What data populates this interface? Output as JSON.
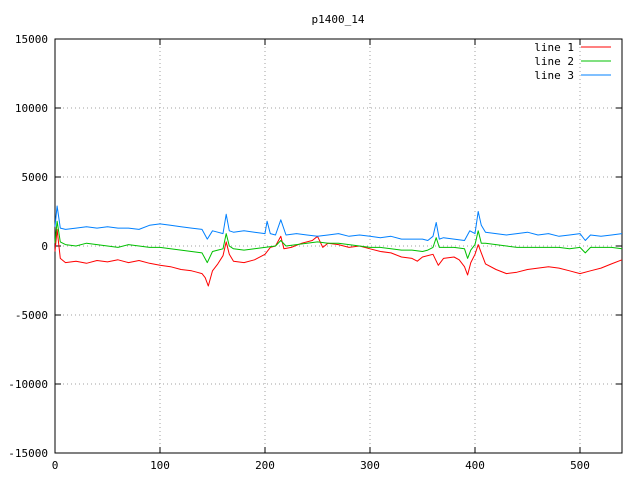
{
  "chart_data": {
    "type": "line",
    "title": "p1400_14",
    "xlabel": "",
    "ylabel": "",
    "xlim": [
      0,
      540
    ],
    "ylim": [
      -15000,
      15000
    ],
    "xticks": [
      0,
      100,
      200,
      300,
      400,
      500
    ],
    "yticks": [
      -15000,
      -10000,
      -5000,
      0,
      5000,
      10000,
      15000
    ],
    "grid": true,
    "legend_position": "top-right",
    "series": [
      {
        "name": "line 1",
        "color": "#ff0000",
        "points": [
          [
            0,
            -400
          ],
          [
            2,
            1200
          ],
          [
            5,
            -900
          ],
          [
            10,
            -1200
          ],
          [
            20,
            -1100
          ],
          [
            30,
            -1250
          ],
          [
            40,
            -1050
          ],
          [
            50,
            -1150
          ],
          [
            60,
            -1000
          ],
          [
            70,
            -1200
          ],
          [
            80,
            -1050
          ],
          [
            90,
            -1250
          ],
          [
            100,
            -1400
          ],
          [
            110,
            -1500
          ],
          [
            120,
            -1700
          ],
          [
            130,
            -1800
          ],
          [
            135,
            -1900
          ],
          [
            140,
            -2000
          ],
          [
            143,
            -2300
          ],
          [
            146,
            -2900
          ],
          [
            150,
            -1800
          ],
          [
            155,
            -1300
          ],
          [
            160,
            -700
          ],
          [
            163,
            300
          ],
          [
            166,
            -600
          ],
          [
            170,
            -1100
          ],
          [
            180,
            -1200
          ],
          [
            190,
            -1000
          ],
          [
            200,
            -600
          ],
          [
            205,
            -100
          ],
          [
            210,
            0
          ],
          [
            215,
            700
          ],
          [
            218,
            -200
          ],
          [
            225,
            -100
          ],
          [
            235,
            200
          ],
          [
            245,
            400
          ],
          [
            250,
            700
          ],
          [
            255,
            -100
          ],
          [
            260,
            200
          ],
          [
            270,
            100
          ],
          [
            280,
            -100
          ],
          [
            290,
            0
          ],
          [
            300,
            -200
          ],
          [
            310,
            -400
          ],
          [
            320,
            -500
          ],
          [
            330,
            -800
          ],
          [
            340,
            -900
          ],
          [
            345,
            -1100
          ],
          [
            350,
            -800
          ],
          [
            360,
            -600
          ],
          [
            365,
            -1400
          ],
          [
            370,
            -900
          ],
          [
            380,
            -800
          ],
          [
            385,
            -1000
          ],
          [
            390,
            -1500
          ],
          [
            393,
            -2100
          ],
          [
            396,
            -1200
          ],
          [
            400,
            -600
          ],
          [
            403,
            100
          ],
          [
            406,
            -500
          ],
          [
            410,
            -1300
          ],
          [
            420,
            -1700
          ],
          [
            430,
            -2000
          ],
          [
            440,
            -1900
          ],
          [
            450,
            -1700
          ],
          [
            460,
            -1600
          ],
          [
            470,
            -1500
          ],
          [
            480,
            -1600
          ],
          [
            490,
            -1800
          ],
          [
            500,
            -2000
          ],
          [
            510,
            -1800
          ],
          [
            520,
            -1600
          ],
          [
            530,
            -1300
          ],
          [
            540,
            -1000
          ]
        ]
      },
      {
        "name": "line 2",
        "color": "#00c000",
        "points": [
          [
            0,
            200
          ],
          [
            2,
            1800
          ],
          [
            5,
            300
          ],
          [
            10,
            100
          ],
          [
            20,
            0
          ],
          [
            30,
            200
          ],
          [
            40,
            100
          ],
          [
            50,
            0
          ],
          [
            60,
            -100
          ],
          [
            70,
            100
          ],
          [
            80,
            0
          ],
          [
            90,
            -100
          ],
          [
            100,
            -100
          ],
          [
            110,
            -200
          ],
          [
            120,
            -300
          ],
          [
            130,
            -400
          ],
          [
            140,
            -500
          ],
          [
            145,
            -1200
          ],
          [
            150,
            -400
          ],
          [
            155,
            -300
          ],
          [
            160,
            -200
          ],
          [
            163,
            900
          ],
          [
            166,
            0
          ],
          [
            170,
            -200
          ],
          [
            180,
            -300
          ],
          [
            190,
            -200
          ],
          [
            200,
            -100
          ],
          [
            210,
            0
          ],
          [
            215,
            400
          ],
          [
            220,
            0
          ],
          [
            230,
            100
          ],
          [
            240,
            200
          ],
          [
            250,
            300
          ],
          [
            260,
            200
          ],
          [
            270,
            200
          ],
          [
            280,
            100
          ],
          [
            290,
            0
          ],
          [
            300,
            -100
          ],
          [
            310,
            -100
          ],
          [
            320,
            -200
          ],
          [
            330,
            -300
          ],
          [
            340,
            -300
          ],
          [
            350,
            -400
          ],
          [
            355,
            -300
          ],
          [
            360,
            -100
          ],
          [
            363,
            600
          ],
          [
            366,
            -100
          ],
          [
            370,
            -100
          ],
          [
            380,
            -100
          ],
          [
            390,
            -200
          ],
          [
            393,
            -900
          ],
          [
            396,
            -300
          ],
          [
            400,
            100
          ],
          [
            403,
            1100
          ],
          [
            406,
            200
          ],
          [
            410,
            200
          ],
          [
            420,
            100
          ],
          [
            430,
            0
          ],
          [
            440,
            -100
          ],
          [
            450,
            -100
          ],
          [
            460,
            -100
          ],
          [
            470,
            -100
          ],
          [
            480,
            -100
          ],
          [
            490,
            -200
          ],
          [
            500,
            -100
          ],
          [
            505,
            -500
          ],
          [
            510,
            -100
          ],
          [
            520,
            -100
          ],
          [
            530,
            -100
          ],
          [
            540,
            -200
          ]
        ]
      },
      {
        "name": "line 3",
        "color": "#0080ff",
        "points": [
          [
            0,
            1400
          ],
          [
            2,
            2900
          ],
          [
            5,
            1300
          ],
          [
            10,
            1200
          ],
          [
            20,
            1300
          ],
          [
            30,
            1400
          ],
          [
            40,
            1300
          ],
          [
            50,
            1400
          ],
          [
            60,
            1300
          ],
          [
            70,
            1300
          ],
          [
            80,
            1200
          ],
          [
            90,
            1500
          ],
          [
            100,
            1600
          ],
          [
            110,
            1500
          ],
          [
            120,
            1400
          ],
          [
            130,
            1300
          ],
          [
            140,
            1200
          ],
          [
            145,
            500
          ],
          [
            150,
            1100
          ],
          [
            155,
            1000
          ],
          [
            160,
            900
          ],
          [
            163,
            2300
          ],
          [
            166,
            1100
          ],
          [
            170,
            1000
          ],
          [
            180,
            1100
          ],
          [
            190,
            1000
          ],
          [
            200,
            900
          ],
          [
            202,
            1800
          ],
          [
            205,
            900
          ],
          [
            210,
            800
          ],
          [
            215,
            1900
          ],
          [
            220,
            800
          ],
          [
            230,
            900
          ],
          [
            240,
            800
          ],
          [
            250,
            700
          ],
          [
            260,
            800
          ],
          [
            270,
            900
          ],
          [
            280,
            700
          ],
          [
            290,
            800
          ],
          [
            300,
            700
          ],
          [
            310,
            600
          ],
          [
            320,
            700
          ],
          [
            330,
            500
          ],
          [
            340,
            500
          ],
          [
            350,
            500
          ],
          [
            355,
            400
          ],
          [
            360,
            700
          ],
          [
            363,
            1700
          ],
          [
            366,
            500
          ],
          [
            370,
            600
          ],
          [
            380,
            500
          ],
          [
            390,
            400
          ],
          [
            395,
            1100
          ],
          [
            400,
            900
          ],
          [
            403,
            2500
          ],
          [
            406,
            1500
          ],
          [
            410,
            1000
          ],
          [
            420,
            900
          ],
          [
            430,
            800
          ],
          [
            440,
            900
          ],
          [
            450,
            1000
          ],
          [
            460,
            800
          ],
          [
            470,
            900
          ],
          [
            480,
            700
          ],
          [
            490,
            800
          ],
          [
            500,
            900
          ],
          [
            505,
            400
          ],
          [
            510,
            800
          ],
          [
            520,
            700
          ],
          [
            530,
            800
          ],
          [
            540,
            900
          ]
        ]
      }
    ]
  }
}
